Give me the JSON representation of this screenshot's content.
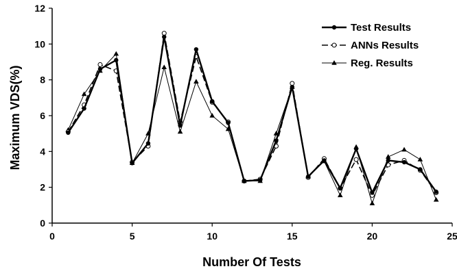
{
  "chart_data": {
    "type": "line",
    "xlabel": "Number Of Tests",
    "ylabel": "Maximum VDS(%)",
    "xlim": [
      0,
      25
    ],
    "ylim": [
      0,
      12
    ],
    "x_ticks": [
      0,
      5,
      10,
      15,
      20,
      25
    ],
    "y_ticks": [
      0,
      2,
      4,
      6,
      8,
      10,
      12
    ],
    "grid": false,
    "legend_position": "top-right",
    "x": [
      1,
      2,
      3,
      4,
      5,
      6,
      7,
      8,
      9,
      10,
      11,
      12,
      13,
      14,
      15,
      16,
      17,
      18,
      19,
      20,
      21,
      22,
      23,
      24
    ],
    "series": [
      {
        "name": "Test Results",
        "marker": "filled-circle",
        "line_style": "solid-thick",
        "values": [
          5.05,
          6.4,
          8.6,
          9.1,
          3.35,
          4.45,
          10.4,
          5.45,
          9.7,
          6.8,
          5.6,
          2.35,
          2.4,
          4.6,
          7.6,
          2.6,
          3.5,
          1.95,
          4.15,
          1.7,
          3.5,
          3.4,
          3.0,
          1.75
        ]
      },
      {
        "name": "ANNs Results",
        "marker": "open-circle",
        "line_style": "dashed",
        "values": [
          5.1,
          6.6,
          8.85,
          8.5,
          3.4,
          4.3,
          10.6,
          5.65,
          9.3,
          6.75,
          5.65,
          2.35,
          2.45,
          4.3,
          7.8,
          2.55,
          3.6,
          1.95,
          3.55,
          1.55,
          3.25,
          3.5,
          2.95,
          1.7
        ]
      },
      {
        "name": "Reg. Results",
        "marker": "filled-triangle",
        "line_style": "solid-thin",
        "values": [
          5.2,
          7.2,
          8.5,
          9.45,
          3.35,
          5.0,
          8.7,
          5.1,
          7.9,
          6.0,
          5.25,
          2.35,
          2.35,
          5.0,
          7.6,
          2.6,
          3.45,
          1.55,
          4.25,
          1.1,
          3.7,
          4.1,
          3.55,
          1.3
        ]
      }
    ]
  }
}
